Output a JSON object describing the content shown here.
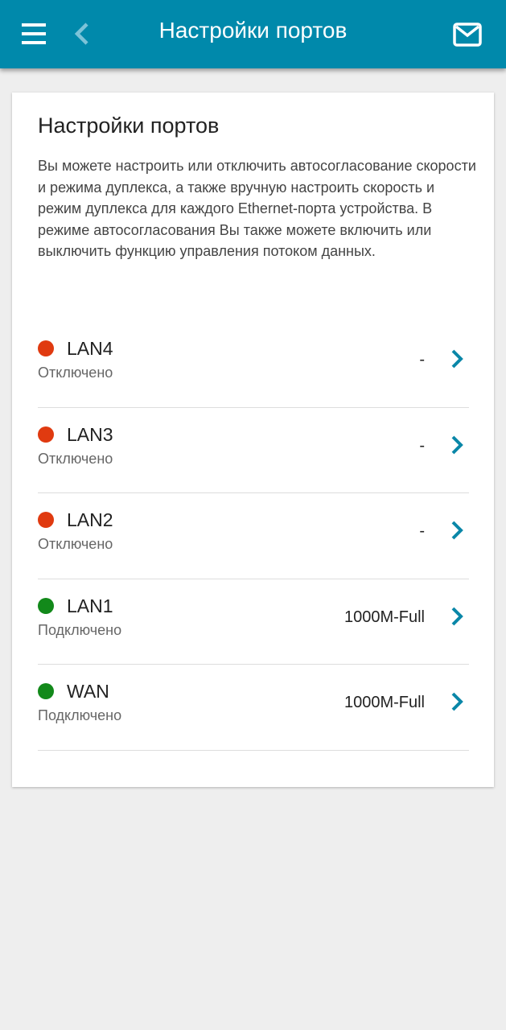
{
  "header": {
    "title": "Настройки портов",
    "menu_icon": "hamburger-icon",
    "back_icon": "chevron-left-icon",
    "mail_icon": "envelope-icon",
    "color": "#0089ab"
  },
  "card": {
    "title": "Настройки портов",
    "description": "Вы можете настроить или отключить автосогласование скорости и режима дуплекса, а также вручную настроить скорость и режим дуплекса для каждого Ethernet-порта устройства. В режиме автосогласования Вы также можете включить или выключить функцию управления потоком данных."
  },
  "ports": [
    {
      "name": "LAN4",
      "status": "Отключено",
      "mode": "-",
      "color": "#e03a10"
    },
    {
      "name": "LAN3",
      "status": "Отключено",
      "mode": "-",
      "color": "#e03a10"
    },
    {
      "name": "LAN2",
      "status": "Отключено",
      "mode": "-",
      "color": "#e03a10"
    },
    {
      "name": "LAN1",
      "status": "Подключено",
      "mode": "1000M-Full",
      "color": "#12891a"
    },
    {
      "name": "WAN",
      "status": "Подключено",
      "mode": "1000M-Full",
      "color": "#12891a"
    }
  ]
}
